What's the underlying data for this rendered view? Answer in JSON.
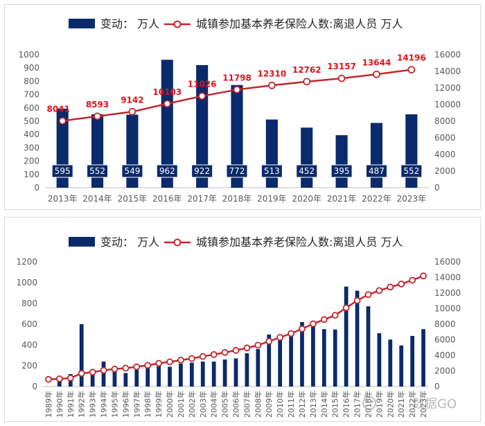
{
  "legend": {
    "bar_label": "变动：  万人",
    "line_label": "城镇参加基本养老保险人数:离退人员  万人"
  },
  "watermark": {
    "text": "数据GO"
  },
  "colors": {
    "bar": "#0a2a6b",
    "bar_label_bg": "#0a2a6b",
    "line": "#c0272d",
    "line_label": "#e0131c",
    "axis_text": "#595959"
  },
  "chart_data": [
    {
      "type": "bar+line",
      "categories": [
        "2013年",
        "2014年",
        "2015年",
        "2016年",
        "2017年",
        "2018年",
        "2019年",
        "2020年",
        "2021年",
        "2022年",
        "2023年"
      ],
      "series": [
        {
          "name": "变动：  万人",
          "type": "bar",
          "axis": "left",
          "values": [
            595,
            552,
            549,
            962,
            922,
            772,
            513,
            452,
            395,
            487,
            552
          ]
        },
        {
          "name": "城镇参加基本养老保险人数:离退人员  万人",
          "type": "line",
          "axis": "right",
          "values": [
            8041,
            8593,
            9142,
            10103,
            11026,
            11798,
            12310,
            12762,
            13157,
            13644,
            14196
          ]
        }
      ],
      "left_axis": {
        "min": 0,
        "max": 1000,
        "step": 100,
        "ticks": [
          "0",
          "100",
          "200",
          "300",
          "400",
          "500",
          "600",
          "700",
          "800",
          "900",
          "1000"
        ]
      },
      "right_axis": {
        "min": 0,
        "max": 16000,
        "step": 2000,
        "ticks": [
          "0",
          "2000",
          "4000",
          "6000",
          "8000",
          "10000",
          "12000",
          "14000",
          "16000"
        ]
      },
      "grid": false,
      "legend_position": "top"
    },
    {
      "type": "bar+line",
      "categories": [
        "1989年",
        "1990年",
        "1991年",
        "1992年",
        "1993年",
        "1994年",
        "1995年",
        "1996年",
        "1997年",
        "1998年",
        "1999年",
        "2000年",
        "2001年",
        "2002年",
        "2003年",
        "2004年",
        "2005年",
        "2006年",
        "2007年",
        "2008年",
        "2009年",
        "2010年",
        "2011年",
        "2012年",
        "2013年",
        "2014年",
        "2015年",
        "2016年",
        "2017年",
        "2018年",
        "2019年",
        "2020年",
        "2021年",
        "2022年",
        "2023年"
      ],
      "series": [
        {
          "name": "变动：  万人",
          "type": "bar",
          "axis": "left",
          "values": [
            0,
            70,
            120,
            600,
            150,
            240,
            170,
            130,
            180,
            200,
            250,
            190,
            220,
            230,
            240,
            240,
            260,
            270,
            320,
            360,
            500,
            470,
            500,
            620,
            595,
            552,
            549,
            962,
            922,
            772,
            513,
            452,
            395,
            487,
            552
          ]
        },
        {
          "name": "城镇参加基本养老保险人数:离退人员  万人",
          "type": "line",
          "axis": "right",
          "values": [
            920,
            990,
            1090,
            1680,
            1840,
            2080,
            2240,
            2360,
            2530,
            2720,
            2980,
            3170,
            3380,
            3600,
            3860,
            4100,
            4370,
            4640,
            4950,
            5300,
            5800,
            6300,
            6800,
            7400,
            8041,
            8593,
            9142,
            10103,
            11026,
            11798,
            12310,
            12762,
            13157,
            13644,
            14196
          ]
        }
      ],
      "left_axis": {
        "min": 0,
        "max": 1200,
        "step": 200,
        "ticks": [
          "0",
          "200",
          "400",
          "600",
          "800",
          "1000",
          "1200"
        ]
      },
      "right_axis": {
        "min": 0,
        "max": 16000,
        "step": 2000,
        "ticks": [
          "0",
          "2000",
          "4000",
          "6000",
          "8000",
          "10000",
          "12000",
          "14000",
          "16000"
        ]
      },
      "grid": false,
      "legend_position": "top"
    }
  ]
}
